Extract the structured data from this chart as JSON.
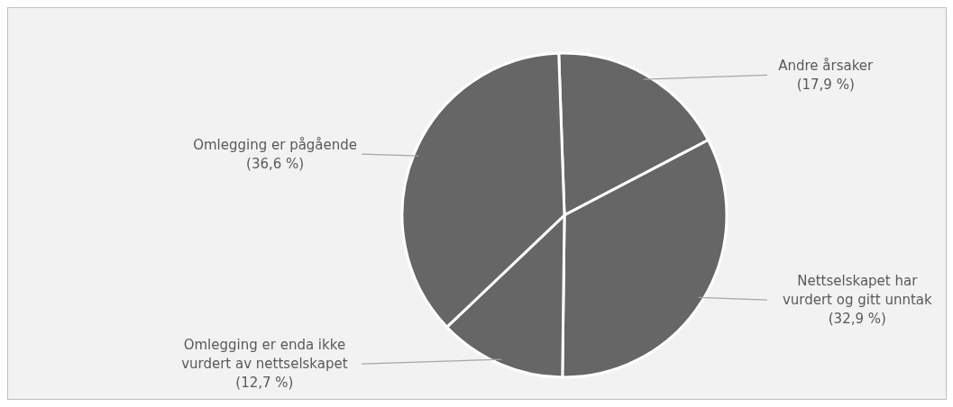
{
  "chart_data": {
    "type": "pie",
    "categories": [
      "Andre årsaker",
      "Nettselskapet har vurdert og gitt unntak",
      "Omlegging er enda ikke vurdert av nettselskapet",
      "Omlegging er pågående"
    ],
    "values": [
      17.9,
      32.9,
      12.7,
      36.6
    ],
    "colors": [
      "#666666",
      "#666666",
      "#666666",
      "#666666"
    ],
    "value_labels": [
      "(17,9 %)",
      "(32,9 %)",
      "(12,7 %)",
      "(36,6 %)"
    ]
  }
}
